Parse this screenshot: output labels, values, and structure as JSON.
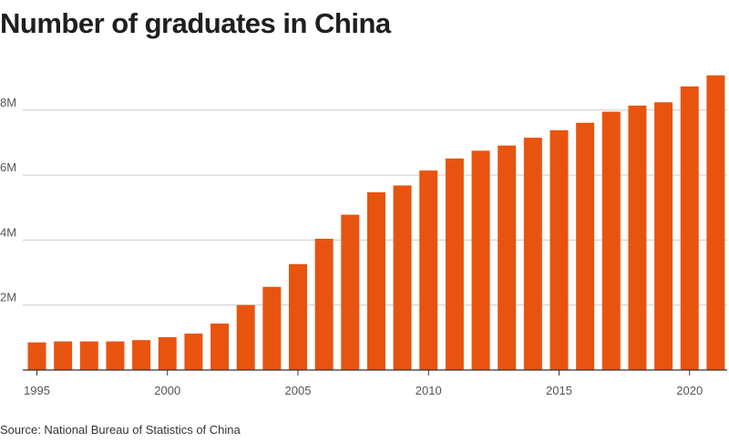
{
  "page": {
    "title": "Number of graduates in China",
    "source": "Source: National Bureau of Statistics of China"
  },
  "colors": {
    "bar": "#e8540f",
    "grid": "#cccccc",
    "axis": "#333333",
    "text": "#555555"
  },
  "chart_data": {
    "type": "bar",
    "title": "Number of graduates in China",
    "xlabel": "",
    "ylabel": "",
    "ylim": [
      0,
      9200000
    ],
    "grid": true,
    "categories": [
      "1995",
      "1996",
      "1997",
      "1998",
      "1999",
      "2000",
      "2001",
      "2002",
      "2003",
      "2004",
      "2005",
      "2006",
      "2007",
      "2008",
      "2009",
      "2010",
      "2011",
      "2012",
      "2013",
      "2014",
      "2015",
      "2016",
      "2017",
      "2018",
      "2019",
      "2020",
      "2021"
    ],
    "values": [
      850000,
      880000,
      880000,
      880000,
      920000,
      1010000,
      1120000,
      1430000,
      2000000,
      2560000,
      3260000,
      4040000,
      4780000,
      5470000,
      5680000,
      6140000,
      6510000,
      6750000,
      6910000,
      7150000,
      7380000,
      7610000,
      7950000,
      8140000,
      8240000,
      8730000,
      9070000
    ],
    "y_ticks": [
      {
        "value": 2000000,
        "label": "2M"
      },
      {
        "value": 4000000,
        "label": "4M"
      },
      {
        "value": 6000000,
        "label": "6M"
      },
      {
        "value": 8000000,
        "label": "8M"
      }
    ],
    "x_ticks": [
      {
        "year": "1995",
        "label": "1995"
      },
      {
        "year": "2000",
        "label": "2000"
      },
      {
        "year": "2005",
        "label": "2005"
      },
      {
        "year": "2010",
        "label": "2010"
      },
      {
        "year": "2015",
        "label": "2015"
      },
      {
        "year": "2020",
        "label": "2020"
      }
    ]
  }
}
